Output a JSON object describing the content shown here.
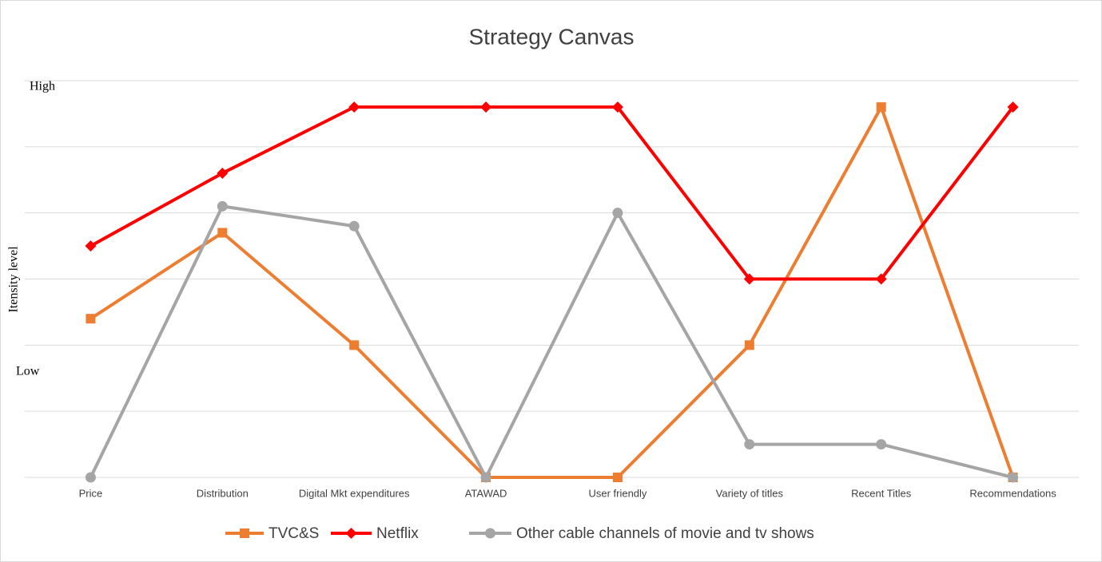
{
  "chart_data": {
    "type": "line",
    "title": "Strategy Canvas",
    "y_label": "Itensity level",
    "annotations": [
      "High",
      "Low"
    ],
    "categories": [
      "Price",
      "Distribution",
      "Digital Mkt expenditures",
      "ATAWAD",
      "User friendly",
      "Variety of titles",
      "Recent Titles",
      "Recommendations"
    ],
    "series": [
      {
        "name": "TVC&S",
        "color": "#ed7d31",
        "marker": "square",
        "values": [
          2.4,
          3.7,
          2,
          0,
          0,
          2,
          5.6,
          0
        ]
      },
      {
        "name": "Netflix",
        "color": "#ff0000",
        "marker": "diamond",
        "values": [
          3.5,
          4.6,
          5.6,
          5.6,
          5.6,
          3,
          3,
          5.6
        ]
      },
      {
        "name": "Other cable channels of movie and tv shows",
        "color": "#a5a5a5",
        "marker": "circle",
        "values": [
          0,
          4.1,
          3.8,
          0,
          4,
          0.5,
          0.5,
          0
        ]
      }
    ],
    "ylim": [
      0,
      6
    ],
    "yticks": [
      0,
      1,
      2,
      3,
      4,
      5,
      6
    ],
    "grid": true,
    "legend": "bottom"
  }
}
